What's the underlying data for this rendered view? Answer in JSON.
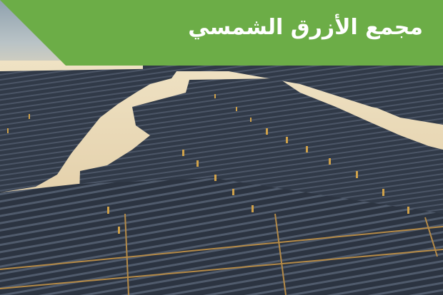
{
  "title": "مجمع الأزرق الشمسي",
  "colors": {
    "banner": "#6cad47",
    "panel": "#2f3744",
    "panel_light": "#46505f",
    "sand": "#e6d3ae",
    "frame": "#b58a46"
  },
  "image": {
    "subject": "aerial photo of a solar farm",
    "elements": [
      "solar-panel-rows",
      "desert-sand",
      "inverter-posts"
    ]
  }
}
